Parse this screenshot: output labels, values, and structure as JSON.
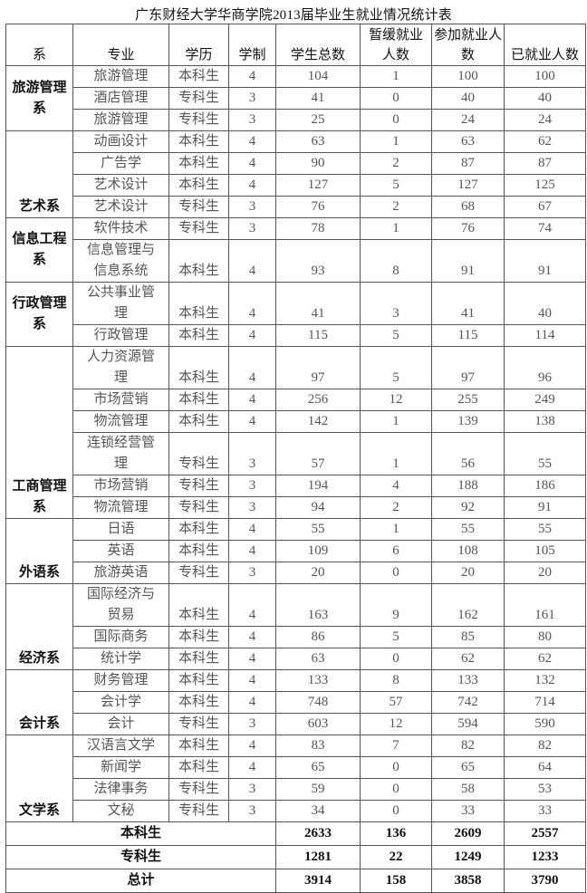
{
  "title": "广东财经大学华商学院2013届毕业生就业情况统计表",
  "headers": [
    "系",
    "专业",
    "学历",
    "学制",
    "学生总数",
    "暂缓就业人数",
    "参加就业人数",
    "已就业人数"
  ],
  "departments": [
    {
      "name": "旅游管理系",
      "align": "mid",
      "rows": [
        [
          "旅游管理",
          "本科生",
          "4",
          "104",
          "1",
          "100",
          "100"
        ],
        [
          "酒店管理",
          "专科生",
          "3",
          "41",
          "0",
          "40",
          "40"
        ],
        [
          "旅游管理",
          "专科生",
          "3",
          "25",
          "0",
          "24",
          "24"
        ]
      ]
    },
    {
      "name": "艺术系",
      "align": "bottom",
      "rows": [
        [
          "动画设计",
          "本科生",
          "4",
          "63",
          "1",
          "63",
          "62"
        ],
        [
          "广告学",
          "本科生",
          "4",
          "90",
          "2",
          "87",
          "87"
        ],
        [
          "艺术设计",
          "本科生",
          "4",
          "127",
          "5",
          "127",
          "125"
        ],
        [
          "艺术设计",
          "专科生",
          "3",
          "76",
          "2",
          "68",
          "67"
        ]
      ]
    },
    {
      "name": "信息工程系",
      "align": "mid",
      "rows": [
        [
          "软件技术",
          "专科生",
          "3",
          "78",
          "1",
          "76",
          "74"
        ],
        [
          "信息管理与信息系统",
          "本科生",
          "4",
          "93",
          "8",
          "91",
          "91"
        ]
      ]
    },
    {
      "name": "行政管理系",
      "align": "mid",
      "rows": [
        [
          "公共事业管理",
          "本科生",
          "4",
          "41",
          "3",
          "41",
          "40"
        ],
        [
          "行政管理",
          "本科生",
          "4",
          "115",
          "5",
          "115",
          "114"
        ]
      ]
    },
    {
      "name": "工商管理系",
      "align": "bottom",
      "rows": [
        [
          "人力资源管理",
          "本科生",
          "4",
          "97",
          "5",
          "97",
          "96"
        ],
        [
          "市场营销",
          "本科生",
          "4",
          "256",
          "12",
          "255",
          "249"
        ],
        [
          "物流管理",
          "本科生",
          "4",
          "142",
          "1",
          "139",
          "138"
        ],
        [
          "连锁经营管理",
          "专科生",
          "3",
          "57",
          "1",
          "56",
          "55"
        ],
        [
          "市场营销",
          "专科生",
          "3",
          "194",
          "4",
          "188",
          "186"
        ],
        [
          "物流管理",
          "专科生",
          "3",
          "94",
          "2",
          "92",
          "91"
        ]
      ]
    },
    {
      "name": "外语系",
      "align": "bottom",
      "rows": [
        [
          "日语",
          "本科生",
          "4",
          "55",
          "1",
          "55",
          "55"
        ],
        [
          "英语",
          "本科生",
          "4",
          "109",
          "6",
          "108",
          "105"
        ],
        [
          "旅游英语",
          "专科生",
          "3",
          "20",
          "0",
          "20",
          "20"
        ]
      ]
    },
    {
      "name": "经济系",
      "align": "bottom",
      "rows": [
        [
          "国际经济与贸易",
          "本科生",
          "4",
          "163",
          "9",
          "162",
          "161"
        ],
        [
          "国际商务",
          "本科生",
          "4",
          "86",
          "5",
          "85",
          "80"
        ],
        [
          "统计学",
          "本科生",
          "4",
          "63",
          "0",
          "62",
          "62"
        ]
      ]
    },
    {
      "name": "会计系",
      "align": "bottom",
      "rows": [
        [
          "财务管理",
          "本科生",
          "4",
          "133",
          "8",
          "133",
          "132"
        ],
        [
          "会计学",
          "本科生",
          "4",
          "748",
          "57",
          "742",
          "714"
        ],
        [
          "会计",
          "专科生",
          "3",
          "603",
          "12",
          "594",
          "590"
        ]
      ]
    },
    {
      "name": "文学系",
      "align": "bottom",
      "rows": [
        [
          "汉语言文学",
          "本科生",
          "4",
          "83",
          "7",
          "82",
          "82"
        ],
        [
          "新闻学",
          "本科生",
          "4",
          "65",
          "0",
          "65",
          "64"
        ],
        [
          "法律事务",
          "专科生",
          "3",
          "59",
          "0",
          "58",
          "53"
        ],
        [
          "文秘",
          "专科生",
          "3",
          "34",
          "0",
          "33",
          "33"
        ]
      ]
    }
  ],
  "totals": [
    [
      "本科生",
      "2633",
      "136",
      "2609",
      "2557"
    ],
    [
      "专科生",
      "1281",
      "22",
      "1249",
      "1233"
    ],
    [
      "总计",
      "3914",
      "158",
      "3858",
      "3790"
    ]
  ]
}
